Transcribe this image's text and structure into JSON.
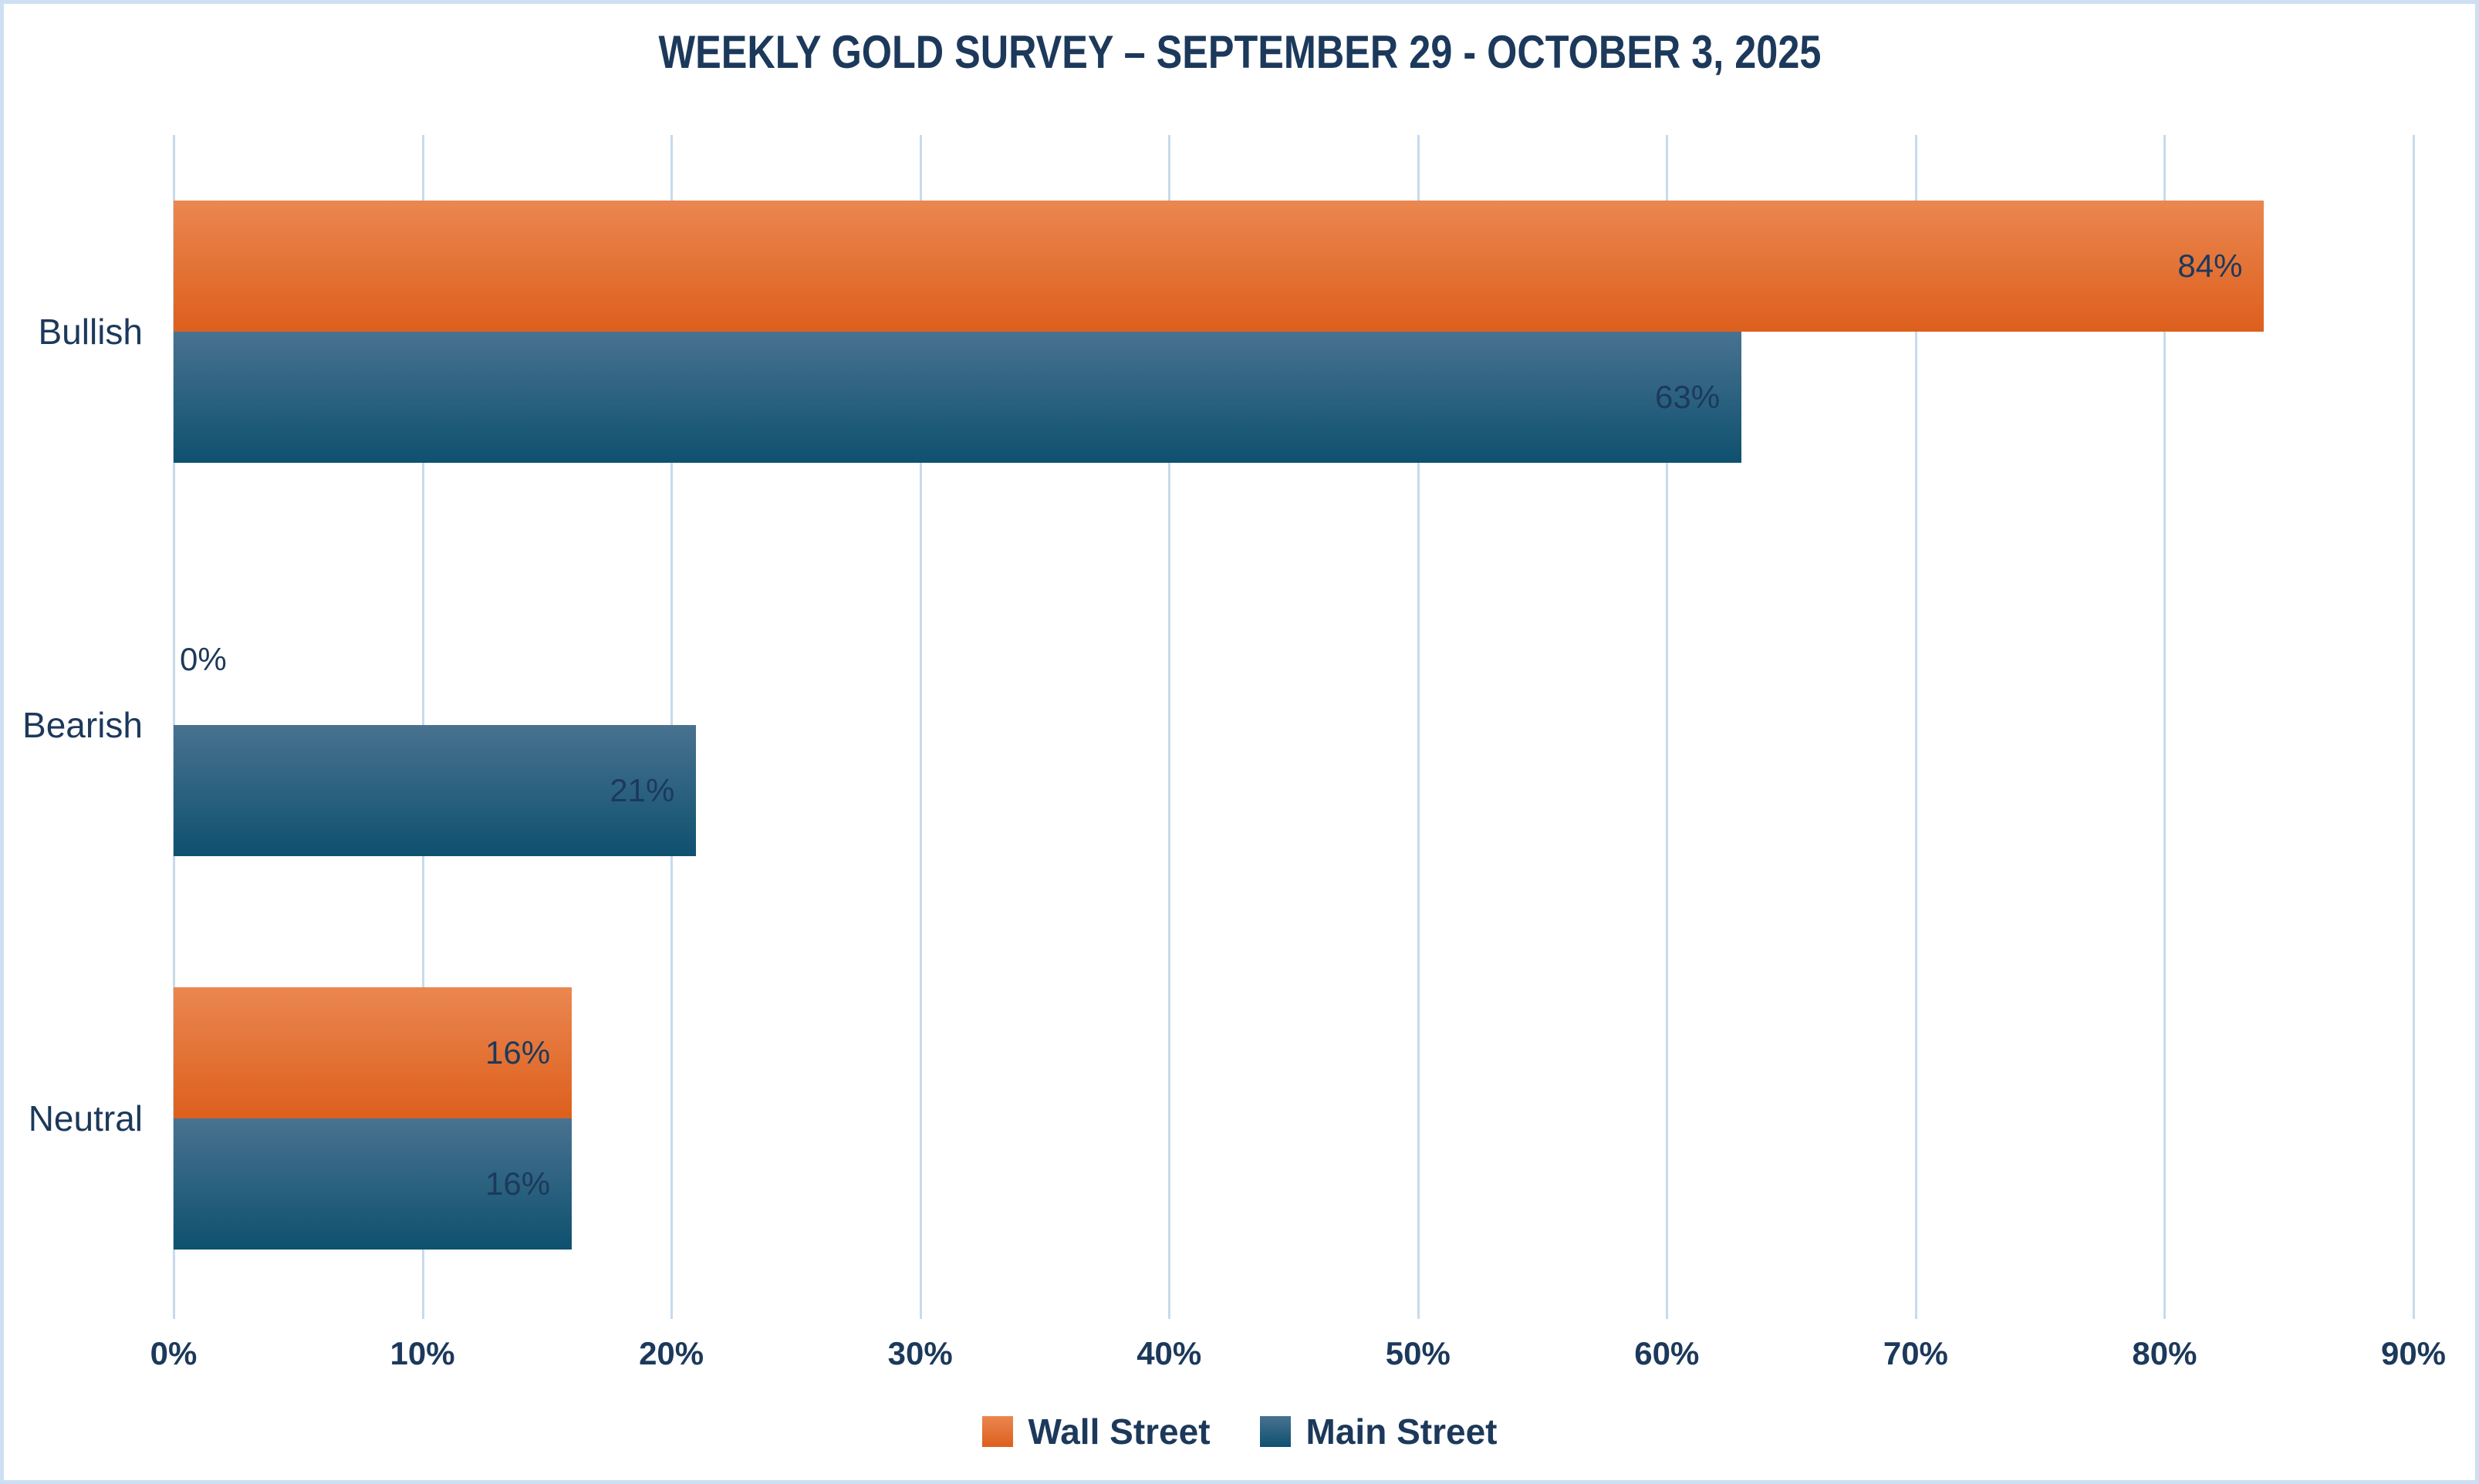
{
  "title": "WEEKLY GOLD SURVEY – SEPTEMBER 29 - OCTOBER 3, 2025",
  "colors": {
    "text_navy": "#1c395b",
    "gridline": "#c7daec",
    "frame_border": "#cde0f2",
    "wall_street_top": "#ea8750",
    "wall_street_bottom": "#dd5f1d",
    "main_street_top": "#487290",
    "main_street_bottom": "#0e516f"
  },
  "chart_data": {
    "type": "bar",
    "orientation": "horizontal",
    "title": "WEEKLY GOLD SURVEY – SEPTEMBER 29 - OCTOBER 3, 2025",
    "categories": [
      "Bullish",
      "Bearish",
      "Neutral"
    ],
    "series": [
      {
        "name": "Wall Street",
        "values": [
          84,
          0,
          16
        ],
        "labels": [
          "84%",
          "0%",
          "16%"
        ],
        "color_top": "#ea8750",
        "color_bottom": "#dd5f1d"
      },
      {
        "name": "Main Street",
        "values": [
          63,
          21,
          16
        ],
        "labels": [
          "63%",
          "21%",
          "16%"
        ],
        "color_top": "#487290",
        "color_bottom": "#0e516f"
      }
    ],
    "x_ticks": [
      "0%",
      "10%",
      "20%",
      "30%",
      "40%",
      "50%",
      "60%",
      "70%",
      "80%",
      "90%"
    ],
    "xlim": [
      0,
      90
    ],
    "xlabel": "",
    "ylabel": "",
    "grid": true,
    "legend_position": "bottom",
    "value_labels_position": "inside-end"
  }
}
